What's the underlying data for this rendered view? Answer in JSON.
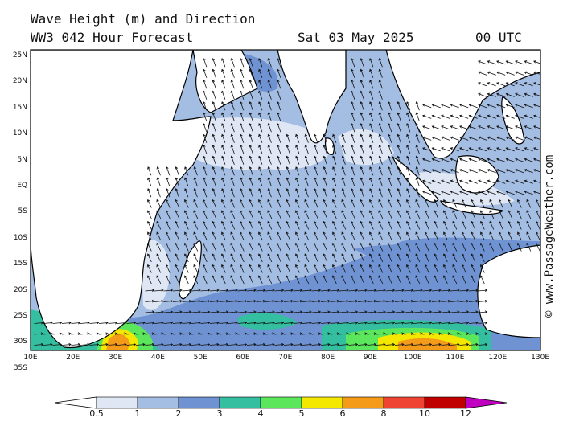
{
  "header": {
    "line1": "Wave Height (m) and Direction",
    "line2": "WW3 042 Hour Forecast",
    "date": "Sat 03 May 2025",
    "time": "00 UTC"
  },
  "credit": "© www.PassageWeather.com",
  "map": {
    "lat_range": [
      -36,
      26
    ],
    "lon_range": [
      10,
      130
    ],
    "lat_labels": [
      "25N",
      "20N",
      "15N",
      "10N",
      "5N",
      "EQ",
      "5S",
      "10S",
      "15S",
      "20S",
      "25S",
      "30S",
      "35S"
    ],
    "lon_labels": [
      "10E",
      "20E",
      "30E",
      "40E",
      "50E",
      "60E",
      "70E",
      "80E",
      "90E",
      "100E",
      "110E",
      "120E",
      "130E"
    ],
    "colors": {
      "land": "#ffffff",
      "band_05_1": "#dfe7f5",
      "band_1_2": "#a4bde3",
      "band_2_3": "#6f93d2",
      "band_3_4": "#33bfa0",
      "band_4_5": "#5ce65c",
      "band_5_6": "#f5e800",
      "band_6_8": "#f59b1a",
      "band_8_10": "#ef4433",
      "band_10_12": "#c00000",
      "band_12_plus": "#c000c0"
    }
  },
  "legend": {
    "labels": [
      "0.5",
      "1",
      "2",
      "3",
      "4",
      "5",
      "6",
      "8",
      "10",
      "12"
    ]
  }
}
